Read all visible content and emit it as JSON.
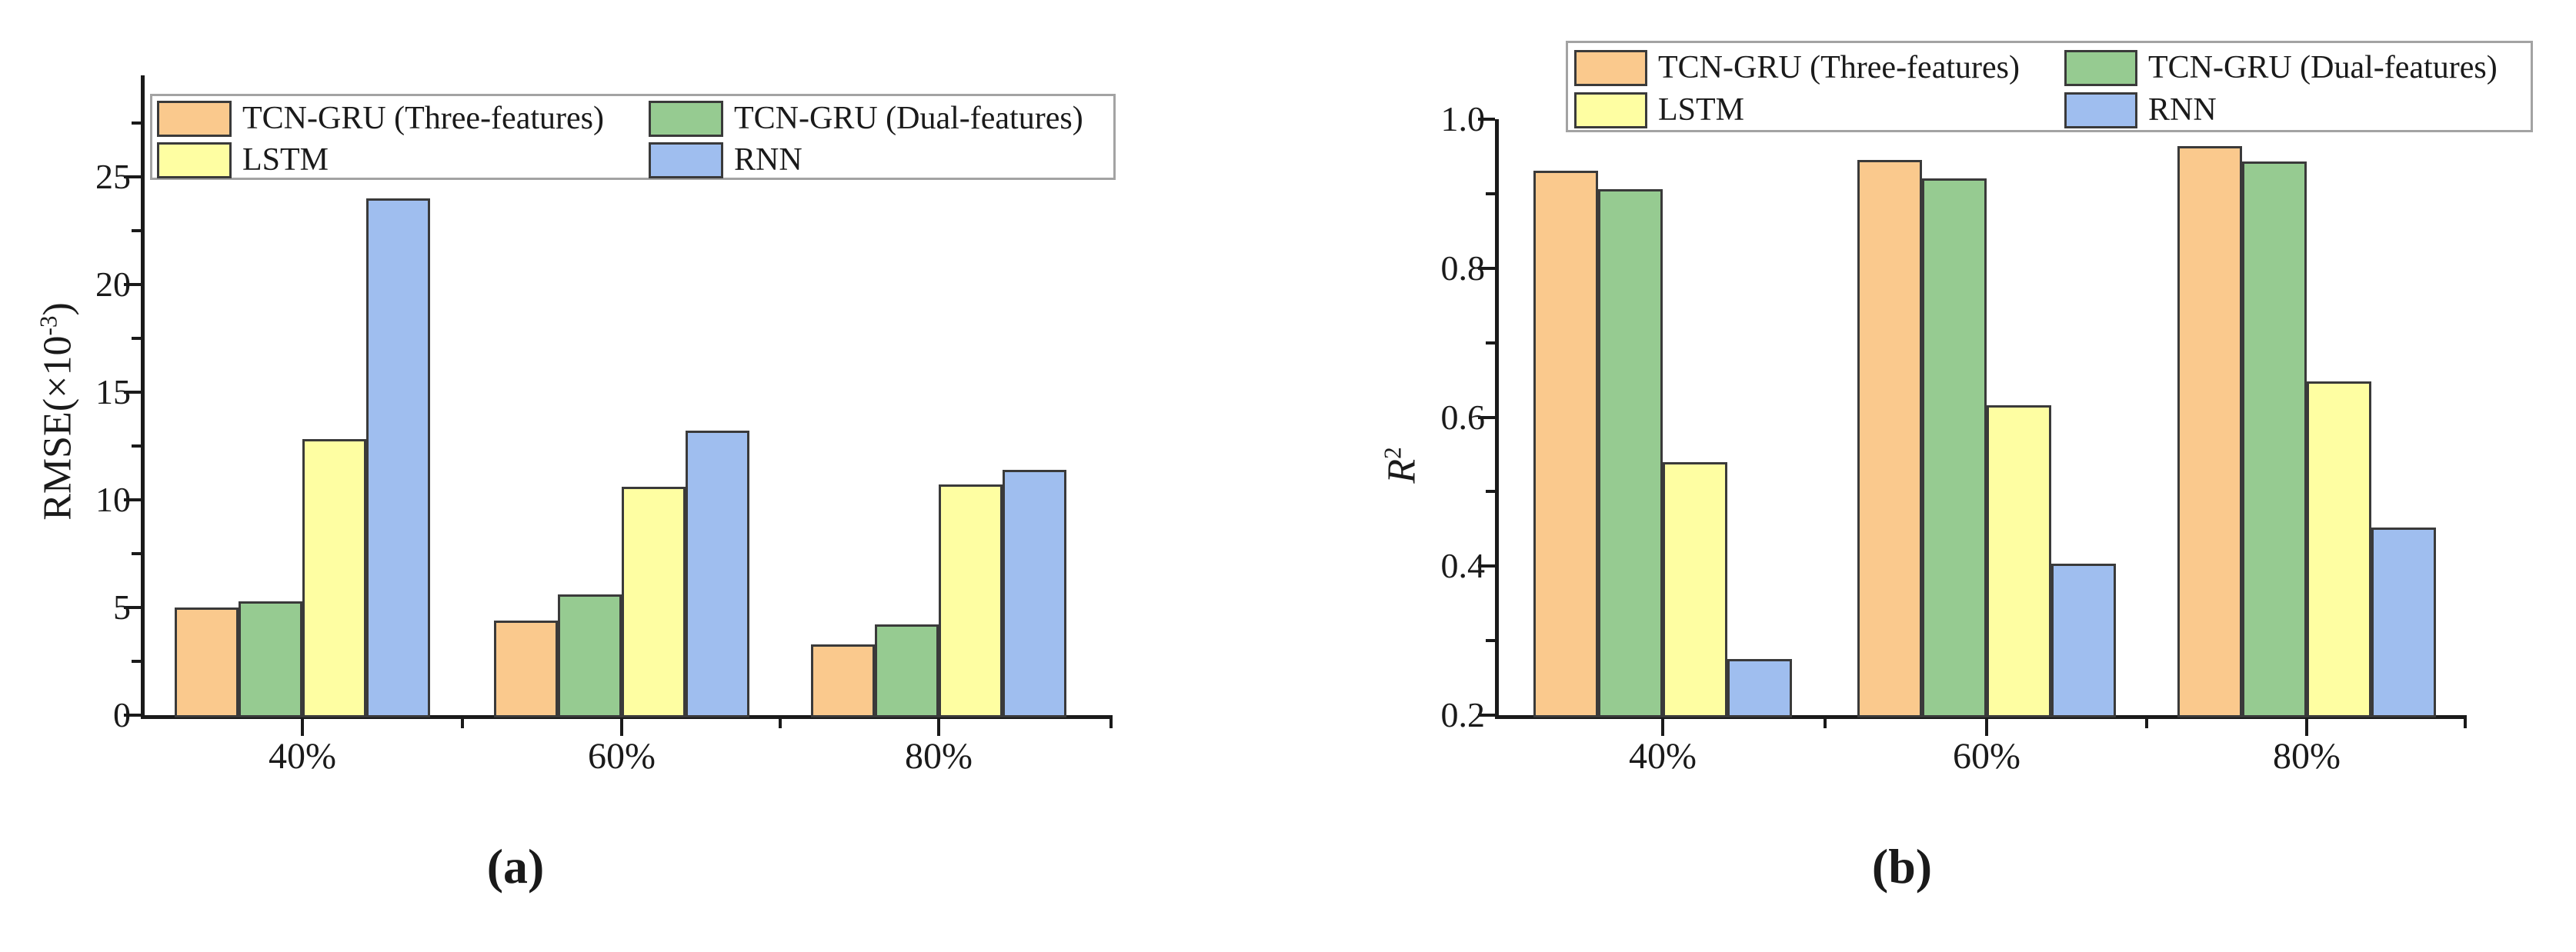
{
  "figure": {
    "background": "#ffffff",
    "axis_color": "#1a1a1a",
    "bar_edge_color": "#3a3a3a",
    "legend_border_color": "#a3a3a3"
  },
  "chart_data": [
    {
      "type": "bar",
      "panel": "a",
      "caption": "(a)",
      "ylabel_text": "RMSE(×10-3)",
      "ylabel_parts": [
        {
          "t": "RMSE(×10"
        },
        {
          "t": "-3",
          "sup": true
        },
        {
          "t": ")"
        }
      ],
      "categories": [
        "40%",
        "60%",
        "80%"
      ],
      "series": [
        {
          "name": "TCN-GRU（Three-features）",
          "color": "#FAC98D",
          "values": [
            5.0,
            4.4,
            3.3
          ]
        },
        {
          "name": "LSTM",
          "color": "#FEFEA2",
          "values": [
            12.8,
            10.6,
            10.7
          ]
        },
        {
          "name": "TCN-GRU（Dual-features）",
          "color": "#96CB91",
          "values": [
            5.3,
            5.6,
            4.2
          ]
        },
        {
          "name": "RNN",
          "color": "#9FBEEF",
          "values": [
            24.0,
            13.2,
            11.4
          ]
        }
      ],
      "y_axis": {
        "min": 0,
        "max": 29.7,
        "major_ticks": [
          {
            "v": 0,
            "label": "0"
          },
          {
            "v": 5,
            "label": "5"
          },
          {
            "v": 10,
            "label": "10"
          },
          {
            "v": 15,
            "label": "15"
          },
          {
            "v": 20,
            "label": "20"
          },
          {
            "v": 25,
            "label": "25"
          }
        ],
        "minor_ticks": [
          2.5,
          7.5,
          12.5,
          17.5,
          22.5,
          27.5
        ]
      },
      "legend_position": "top-inside",
      "grid": false
    },
    {
      "type": "bar",
      "panel": "b",
      "caption": "(b)",
      "ylabel_text": "R2",
      "ylabel_parts": [
        {
          "t": "R",
          "italic": true
        },
        {
          "t": "2",
          "sup": true
        }
      ],
      "categories": [
        "40%",
        "60%",
        "80%"
      ],
      "series": [
        {
          "name": "TCN-GRU（Three-features）",
          "color": "#FAC98D",
          "values": [
            0.931,
            0.945,
            0.964
          ]
        },
        {
          "name": "LSTM",
          "color": "#FEFEA2",
          "values": [
            0.54,
            0.616,
            0.648
          ]
        },
        {
          "name": "TCN-GRU（Dual-features）",
          "color": "#96CB91",
          "values": [
            0.906,
            0.921,
            0.943
          ]
        },
        {
          "name": "RNN",
          "color": "#9FBEEF",
          "values": [
            0.275,
            0.403,
            0.452
          ]
        }
      ],
      "y_axis": {
        "min": 0.2,
        "max": 1.0,
        "major_ticks": [
          {
            "v": 0.2,
            "label": "0.2"
          },
          {
            "v": 0.4,
            "label": "0.4"
          },
          {
            "v": 0.6,
            "label": "0.6"
          },
          {
            "v": 0.8,
            "label": "0.8"
          },
          {
            "v": 1.0,
            "label": "1.0"
          }
        ],
        "minor_ticks": [
          0.3,
          0.5,
          0.7,
          0.9
        ]
      },
      "legend_position": "top-above",
      "grid": false
    }
  ]
}
